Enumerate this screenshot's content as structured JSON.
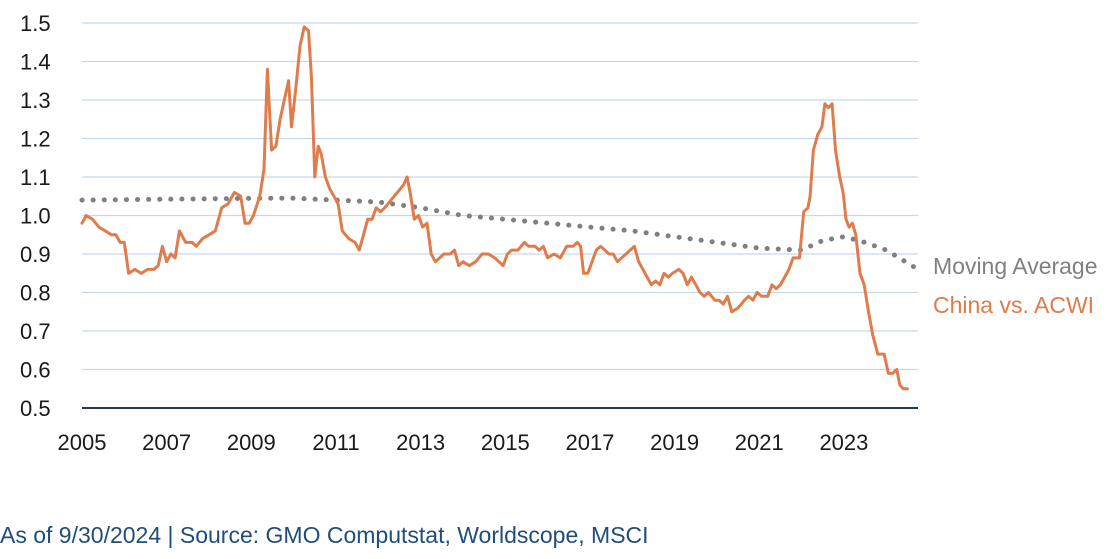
{
  "chart_data": {
    "type": "line",
    "title": "",
    "xlabel": "",
    "ylabel": "",
    "xlim": [
      2005,
      2024.75
    ],
    "ylim": [
      0.5,
      1.5
    ],
    "x_ticks": [
      2005,
      2007,
      2009,
      2011,
      2013,
      2015,
      2017,
      2019,
      2021,
      2023
    ],
    "x_tick_labels": [
      "2005",
      "2007",
      "2009",
      "2011",
      "2013",
      "2015",
      "2017",
      "2019",
      "2021",
      "2023"
    ],
    "y_ticks": [
      0.5,
      0.6,
      0.7,
      0.8,
      0.9,
      1.0,
      1.1,
      1.2,
      1.3,
      1.4,
      1.5
    ],
    "y_tick_labels": [
      "0.5",
      "0.6",
      "0.7",
      "0.8",
      "0.9",
      "1.0",
      "1.1",
      "1.2",
      "1.3",
      "1.4",
      "1.5"
    ],
    "grid": true,
    "legend": "right",
    "colors": {
      "china": "#e07b4c",
      "moving_average": "#808080",
      "grid": "#c5d9e8",
      "baseline": "#1f3a5a",
      "footer": "#1f4e79"
    },
    "series": [
      {
        "name": "China vs. ACWI",
        "style": "solid",
        "points": [
          [
            2005.0,
            0.98
          ],
          [
            2005.1,
            1.0
          ],
          [
            2005.25,
            0.99
          ],
          [
            2005.4,
            0.97
          ],
          [
            2005.55,
            0.96
          ],
          [
            2005.7,
            0.95
          ],
          [
            2005.8,
            0.95
          ],
          [
            2005.9,
            0.93
          ],
          [
            2006.0,
            0.93
          ],
          [
            2006.1,
            0.85
          ],
          [
            2006.25,
            0.86
          ],
          [
            2006.4,
            0.85
          ],
          [
            2006.55,
            0.86
          ],
          [
            2006.7,
            0.86
          ],
          [
            2006.8,
            0.87
          ],
          [
            2006.9,
            0.92
          ],
          [
            2007.0,
            0.88
          ],
          [
            2007.1,
            0.9
          ],
          [
            2007.2,
            0.89
          ],
          [
            2007.3,
            0.96
          ],
          [
            2007.45,
            0.93
          ],
          [
            2007.6,
            0.93
          ],
          [
            2007.7,
            0.92
          ],
          [
            2007.85,
            0.94
          ],
          [
            2008.0,
            0.95
          ],
          [
            2008.15,
            0.96
          ],
          [
            2008.3,
            1.02
          ],
          [
            2008.45,
            1.03
          ],
          [
            2008.6,
            1.06
          ],
          [
            2008.75,
            1.05
          ],
          [
            2008.85,
            0.98
          ],
          [
            2008.95,
            0.98
          ],
          [
            2009.05,
            1.0
          ],
          [
            2009.2,
            1.05
          ],
          [
            2009.3,
            1.12
          ],
          [
            2009.38,
            1.38
          ],
          [
            2009.48,
            1.17
          ],
          [
            2009.58,
            1.18
          ],
          [
            2009.68,
            1.25
          ],
          [
            2009.78,
            1.3
          ],
          [
            2009.88,
            1.35
          ],
          [
            2009.95,
            1.23
          ],
          [
            2010.05,
            1.33
          ],
          [
            2010.15,
            1.44
          ],
          [
            2010.25,
            1.49
          ],
          [
            2010.35,
            1.48
          ],
          [
            2010.42,
            1.36
          ],
          [
            2010.5,
            1.1
          ],
          [
            2010.58,
            1.18
          ],
          [
            2010.65,
            1.16
          ],
          [
            2010.75,
            1.1
          ],
          [
            2010.85,
            1.07
          ],
          [
            2010.95,
            1.05
          ],
          [
            2011.05,
            1.03
          ],
          [
            2011.15,
            0.96
          ],
          [
            2011.3,
            0.94
          ],
          [
            2011.45,
            0.93
          ],
          [
            2011.55,
            0.91
          ],
          [
            2011.65,
            0.95
          ],
          [
            2011.75,
            0.99
          ],
          [
            2011.85,
            0.99
          ],
          [
            2011.95,
            1.02
          ],
          [
            2012.05,
            1.01
          ],
          [
            2012.15,
            1.02
          ],
          [
            2012.3,
            1.04
          ],
          [
            2012.45,
            1.06
          ],
          [
            2012.6,
            1.08
          ],
          [
            2012.68,
            1.1
          ],
          [
            2012.75,
            1.06
          ],
          [
            2012.85,
            0.99
          ],
          [
            2012.95,
            1.0
          ],
          [
            2013.05,
            0.97
          ],
          [
            2013.15,
            0.98
          ],
          [
            2013.25,
            0.9
          ],
          [
            2013.35,
            0.88
          ],
          [
            2013.45,
            0.89
          ],
          [
            2013.55,
            0.9
          ],
          [
            2013.7,
            0.9
          ],
          [
            2013.8,
            0.91
          ],
          [
            2013.9,
            0.87
          ],
          [
            2014.0,
            0.88
          ],
          [
            2014.15,
            0.87
          ],
          [
            2014.3,
            0.88
          ],
          [
            2014.45,
            0.9
          ],
          [
            2014.6,
            0.9
          ],
          [
            2014.75,
            0.89
          ],
          [
            2014.85,
            0.88
          ],
          [
            2014.95,
            0.87
          ],
          [
            2015.05,
            0.9
          ],
          [
            2015.15,
            0.91
          ],
          [
            2015.3,
            0.91
          ],
          [
            2015.45,
            0.93
          ],
          [
            2015.55,
            0.92
          ],
          [
            2015.7,
            0.92
          ],
          [
            2015.8,
            0.91
          ],
          [
            2015.9,
            0.92
          ],
          [
            2016.0,
            0.89
          ],
          [
            2016.15,
            0.9
          ],
          [
            2016.3,
            0.89
          ],
          [
            2016.45,
            0.92
          ],
          [
            2016.6,
            0.92
          ],
          [
            2016.7,
            0.93
          ],
          [
            2016.78,
            0.92
          ],
          [
            2016.85,
            0.85
          ],
          [
            2016.95,
            0.85
          ],
          [
            2017.05,
            0.88
          ],
          [
            2017.15,
            0.91
          ],
          [
            2017.25,
            0.92
          ],
          [
            2017.35,
            0.91
          ],
          [
            2017.45,
            0.9
          ],
          [
            2017.55,
            0.9
          ],
          [
            2017.65,
            0.88
          ],
          [
            2017.75,
            0.89
          ],
          [
            2017.85,
            0.9
          ],
          [
            2017.95,
            0.91
          ],
          [
            2018.05,
            0.92
          ],
          [
            2018.15,
            0.88
          ],
          [
            2018.25,
            0.86
          ],
          [
            2018.35,
            0.84
          ],
          [
            2018.45,
            0.82
          ],
          [
            2018.55,
            0.83
          ],
          [
            2018.65,
            0.82
          ],
          [
            2018.75,
            0.85
          ],
          [
            2018.85,
            0.84
          ],
          [
            2018.95,
            0.85
          ],
          [
            2019.1,
            0.86
          ],
          [
            2019.2,
            0.85
          ],
          [
            2019.3,
            0.82
          ],
          [
            2019.4,
            0.84
          ],
          [
            2019.5,
            0.82
          ],
          [
            2019.6,
            0.8
          ],
          [
            2019.7,
            0.79
          ],
          [
            2019.8,
            0.8
          ],
          [
            2019.95,
            0.78
          ],
          [
            2020.05,
            0.78
          ],
          [
            2020.15,
            0.77
          ],
          [
            2020.25,
            0.79
          ],
          [
            2020.35,
            0.75
          ],
          [
            2020.5,
            0.76
          ],
          [
            2020.65,
            0.78
          ],
          [
            2020.75,
            0.79
          ],
          [
            2020.85,
            0.78
          ],
          [
            2020.95,
            0.8
          ],
          [
            2021.05,
            0.79
          ],
          [
            2021.2,
            0.79
          ],
          [
            2021.3,
            0.82
          ],
          [
            2021.4,
            0.81
          ],
          [
            2021.5,
            0.82
          ],
          [
            2021.6,
            0.84
          ],
          [
            2021.7,
            0.86
          ],
          [
            2021.8,
            0.89
          ],
          [
            2021.95,
            0.89
          ],
          [
            2022.05,
            1.01
          ],
          [
            2022.15,
            1.02
          ],
          [
            2022.2,
            1.05
          ],
          [
            2022.28,
            1.17
          ],
          [
            2022.38,
            1.21
          ],
          [
            2022.48,
            1.23
          ],
          [
            2022.55,
            1.29
          ],
          [
            2022.63,
            1.28
          ],
          [
            2022.72,
            1.29
          ],
          [
            2022.8,
            1.17
          ],
          [
            2022.9,
            1.1
          ],
          [
            2022.98,
            1.06
          ],
          [
            2023.05,
            0.99
          ],
          [
            2023.12,
            0.97
          ],
          [
            2023.2,
            0.98
          ],
          [
            2023.28,
            0.95
          ],
          [
            2023.38,
            0.85
          ],
          [
            2023.48,
            0.82
          ],
          [
            2023.58,
            0.75
          ],
          [
            2023.68,
            0.69
          ],
          [
            2023.8,
            0.64
          ],
          [
            2023.95,
            0.64
          ],
          [
            2024.05,
            0.59
          ],
          [
            2024.15,
            0.59
          ],
          [
            2024.25,
            0.6
          ],
          [
            2024.32,
            0.56
          ],
          [
            2024.4,
            0.55
          ],
          [
            2024.5,
            0.55
          ]
        ]
      },
      {
        "name": "Moving Average",
        "style": "dotted",
        "points": [
          [
            2005.0,
            1.04
          ],
          [
            2009.3,
            1.045
          ],
          [
            2010.0,
            1.045
          ],
          [
            2011.0,
            1.04
          ],
          [
            2012.0,
            1.035
          ],
          [
            2013.0,
            1.02
          ],
          [
            2014.0,
            1.0
          ],
          [
            2015.0,
            0.99
          ],
          [
            2016.0,
            0.98
          ],
          [
            2017.0,
            0.97
          ],
          [
            2018.0,
            0.96
          ],
          [
            2019.0,
            0.945
          ],
          [
            2020.0,
            0.93
          ],
          [
            2021.0,
            0.915
          ],
          [
            2022.0,
            0.91
          ],
          [
            2022.5,
            0.935
          ],
          [
            2023.0,
            0.945
          ],
          [
            2023.5,
            0.93
          ],
          [
            2024.0,
            0.91
          ],
          [
            2024.75,
            0.86
          ]
        ]
      }
    ],
    "legend_entries": [
      {
        "label": "Moving Average",
        "color": "#808080"
      },
      {
        "label": "China vs. ACWI",
        "color": "#e07b4c"
      }
    ]
  },
  "footer": {
    "text": "As of 9/30/2024 | Source: GMO Computstat, Worldscope, MSCI"
  }
}
